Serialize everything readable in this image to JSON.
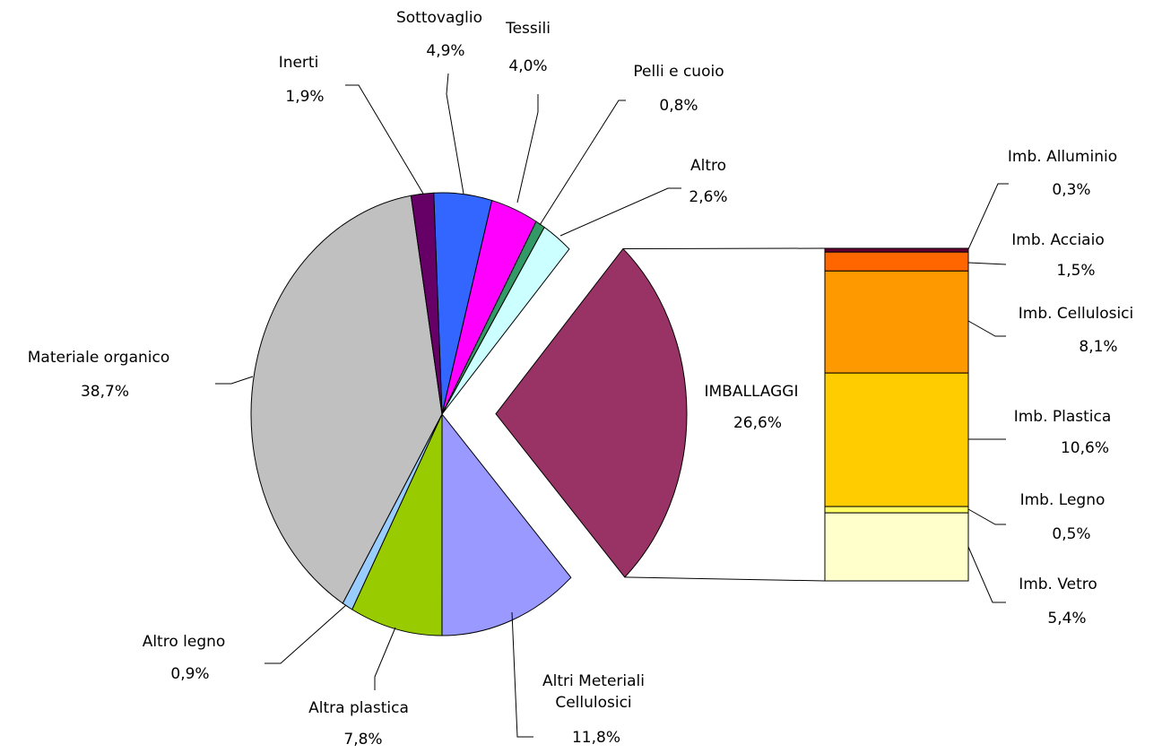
{
  "chart_data": {
    "type": "pie-of-bar",
    "categories": [
      "Sottovaglio",
      "Tessili",
      "Pelli e cuoio",
      "Altro",
      "IMBALLAGGI",
      "Altri Meteriali Cellulosici",
      "Altra plastica",
      "Altro legno",
      "Materiale organico",
      "Inerti"
    ],
    "values": [
      4.9,
      4.0,
      0.8,
      2.6,
      26.6,
      11.8,
      7.8,
      0.9,
      38.7,
      1.9
    ],
    "value_labels": [
      "4,9%",
      "4,0%",
      "0,8%",
      "2,6%",
      "26,6%",
      "11,8%",
      "7,8%",
      "0,9%",
      "38,7%",
      "1,9%"
    ],
    "colors": [
      "#3366ff",
      "#ff00ff",
      "#339966",
      "#ccffff",
      "#993366",
      "#9999ff",
      "#99cc00",
      "#99ccff",
      "#c0c0c0",
      "#660066"
    ],
    "bar": {
      "categories": [
        "Imb. Alluminio",
        "Imb. Acciaio",
        "Imb. Cellulosici",
        "Imb. Plastica",
        "Imb. Legno",
        "Imb. Vetro"
      ],
      "values": [
        0.3,
        1.5,
        8.1,
        10.6,
        0.5,
        5.4
      ],
      "value_labels": [
        "0,3%",
        "1,5%",
        "8,1%",
        "10,6%",
        "0,5%",
        "5,4%"
      ],
      "colors": [
        "#660033",
        "#ff6600",
        "#ff9900",
        "#ffcc00",
        "#ffff66",
        "#ffffcc"
      ]
    }
  }
}
